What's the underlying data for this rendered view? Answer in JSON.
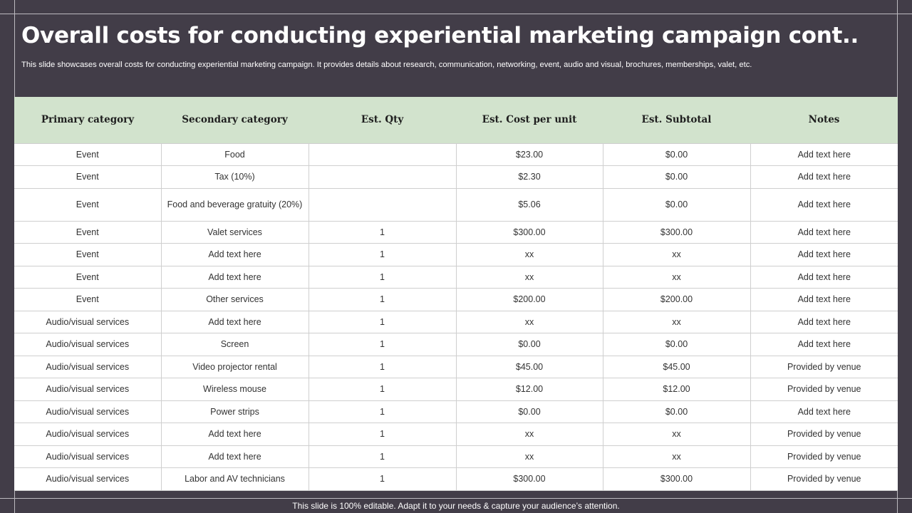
{
  "slide": {
    "title": "Overall costs for conducting experiential marketing campaign cont..",
    "subtitle": "This slide showcases overall costs for conducting experiential marketing campaign. It provides details about research, communication, networking, event, audio and visual, brochures, memberships, valet, etc.",
    "footer": "This slide is 100% editable. Adapt it to your needs & capture your audience’s attention.",
    "colors": {
      "background": "#423d48",
      "header_fill": "#d2e3cd",
      "text_white": "#ffffff"
    }
  },
  "table": {
    "columns": [
      "Primary category",
      "Secondary category",
      "Est. Qty",
      "Est. Cost per unit",
      "Est. Subtotal",
      "Notes"
    ],
    "rows": [
      [
        "Event",
        "Food",
        "",
        "$23.00",
        "$0.00",
        "Add text here"
      ],
      [
        "Event",
        "Tax (10%)",
        "",
        "$2.30",
        "$0.00",
        "Add text here"
      ],
      [
        "Event",
        "Food and beverage gratuity (20%)",
        "",
        "$5.06",
        "$0.00",
        "Add text here"
      ],
      [
        "Event",
        "Valet services",
        "1",
        "$300.00",
        "$300.00",
        "Add text here"
      ],
      [
        "Event",
        "Add text here",
        "1",
        "xx",
        "xx",
        "Add text here"
      ],
      [
        "Event",
        "Add text here",
        "1",
        "xx",
        "xx",
        "Add text here"
      ],
      [
        "Event",
        "Other services",
        "1",
        "$200.00",
        "$200.00",
        "Add text here"
      ],
      [
        "Audio/visual  services",
        "Add text here",
        "1",
        "xx",
        "xx",
        "Add text here"
      ],
      [
        "Audio/visual  services",
        "Screen",
        "1",
        "$0.00",
        "$0.00",
        "Add text here"
      ],
      [
        "Audio/visual  services",
        "Video projector rental",
        "1",
        "$45.00",
        "$45.00",
        "Provided  by venue"
      ],
      [
        "Audio/visual  services",
        "Wireless mouse",
        "1",
        "$12.00",
        "$12.00",
        "Provided  by venue"
      ],
      [
        "Audio/visual  services",
        "Power strips",
        "1",
        "$0.00",
        "$0.00",
        "Add text here"
      ],
      [
        "Audio/visual  services",
        "Add text here",
        "1",
        "xx",
        "xx",
        "Provided  by venue"
      ],
      [
        "Audio/visual  services",
        "Add text here",
        "1",
        "xx",
        "xx",
        "Provided  by venue"
      ],
      [
        "Audio/visual  services",
        "Labor and AV technicians",
        "1",
        "$300.00",
        "$300.00",
        "Provided  by venue"
      ]
    ]
  }
}
